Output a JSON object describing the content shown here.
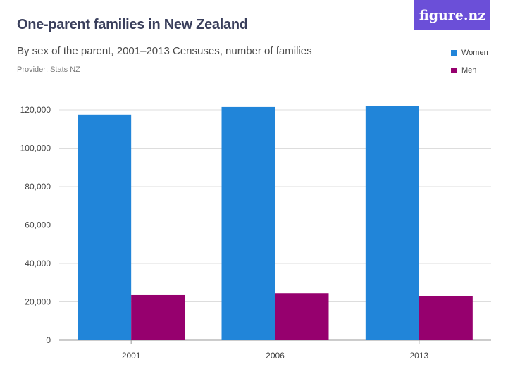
{
  "header": {
    "title": "One-parent families in New Zealand",
    "subtitle": "By sex of the parent, 2001–2013 Censuses, number of families",
    "provider": "Provider: Stats NZ",
    "logo_text": "figure.nz"
  },
  "colors": {
    "women": "#2185d9",
    "men": "#96006e",
    "grid": "#dddddd",
    "logo_bg": "#6b4fd8"
  },
  "chart_data": {
    "type": "bar",
    "title": "One-parent families in New Zealand",
    "subtitle": "By sex of the parent, 2001–2013 Censuses, number of families",
    "categories": [
      "2001",
      "2006",
      "2013"
    ],
    "series": [
      {
        "name": "Women",
        "values": [
          117500,
          121500,
          122000
        ]
      },
      {
        "name": "Men",
        "values": [
          23500,
          24500,
          23000
        ]
      }
    ],
    "ylim": [
      0,
      120000
    ],
    "yticks": [
      0,
      20000,
      40000,
      60000,
      80000,
      100000,
      120000
    ],
    "ytick_labels": [
      "0",
      "20,000",
      "40,000",
      "60,000",
      "80,000",
      "100,000",
      "120,000"
    ],
    "grid": true,
    "legend": "top-right"
  }
}
